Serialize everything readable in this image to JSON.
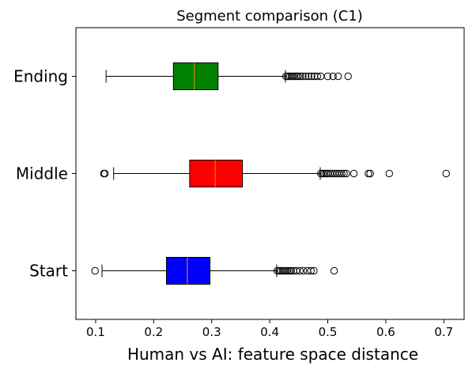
{
  "chart_data": {
    "type": "boxplot",
    "orientation": "horizontal",
    "title": "Segment comparison (C1)",
    "xlabel": "Human vs AI: feature space distance",
    "ylabel": "",
    "xlim": [
      0.066,
      0.735
    ],
    "xticks": [
      0.1,
      0.2,
      0.3,
      0.4,
      0.5,
      0.6,
      0.7
    ],
    "xtick_labels": [
      "0.1",
      "0.2",
      "0.3",
      "0.4",
      "0.5",
      "0.6",
      "0.7"
    ],
    "categories": [
      "Start",
      "Middle",
      "Ending"
    ],
    "grid": false,
    "median_color": "#ff8c00",
    "boxes": [
      {
        "category": "Start",
        "color": "#0000ff",
        "whisker_low": 0.111,
        "q1": 0.222,
        "median": 0.258,
        "q3": 0.297,
        "whisker_high": 0.412,
        "outliers": [
          0.099,
          0.413,
          0.416,
          0.419,
          0.422,
          0.425,
          0.428,
          0.431,
          0.434,
          0.437,
          0.441,
          0.446,
          0.452,
          0.458,
          0.465,
          0.471,
          0.476,
          0.511
        ]
      },
      {
        "category": "Middle",
        "color": "#ff0000",
        "whisker_low": 0.131,
        "q1": 0.262,
        "median": 0.306,
        "q3": 0.353,
        "whisker_high": 0.487,
        "outliers": [
          0.114,
          0.116,
          0.488,
          0.491,
          0.494,
          0.497,
          0.5,
          0.504,
          0.508,
          0.512,
          0.516,
          0.52,
          0.524,
          0.528,
          0.532,
          0.545,
          0.57,
          0.573,
          0.606,
          0.704
        ]
      },
      {
        "category": "Ending",
        "color": "#008000",
        "whisker_low": 0.118,
        "q1": 0.234,
        "median": 0.27,
        "q3": 0.311,
        "whisker_high": 0.427,
        "outliers": [
          0.428,
          0.431,
          0.434,
          0.437,
          0.44,
          0.443,
          0.446,
          0.449,
          0.453,
          0.457,
          0.462,
          0.467,
          0.472,
          0.477,
          0.482,
          0.488,
          0.5,
          0.509,
          0.518,
          0.535
        ]
      }
    ]
  }
}
